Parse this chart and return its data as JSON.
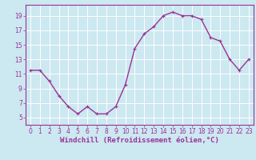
{
  "x": [
    0,
    1,
    2,
    3,
    4,
    5,
    6,
    7,
    8,
    9,
    10,
    11,
    12,
    13,
    14,
    15,
    16,
    17,
    18,
    19,
    20,
    21,
    22,
    23
  ],
  "y": [
    11.5,
    11.5,
    10.0,
    8.0,
    6.5,
    5.5,
    6.5,
    5.5,
    5.5,
    6.5,
    9.5,
    14.5,
    16.5,
    17.5,
    19.0,
    19.5,
    19.0,
    19.0,
    18.5,
    16.0,
    15.5,
    13.0,
    11.5,
    13.0
  ],
  "line_color": "#993399",
  "marker": "+",
  "marker_size": 3,
  "marker_linewidth": 0.8,
  "bg_color": "#cce8f0",
  "grid_color": "#ffffff",
  "xlabel": "Windchill (Refroidissement éolien,°C)",
  "xlim": [
    -0.5,
    23.5
  ],
  "ylim": [
    4,
    20.5
  ],
  "yticks": [
    5,
    7,
    9,
    11,
    13,
    15,
    17,
    19
  ],
  "xticks": [
    0,
    1,
    2,
    3,
    4,
    5,
    6,
    7,
    8,
    9,
    10,
    11,
    12,
    13,
    14,
    15,
    16,
    17,
    18,
    19,
    20,
    21,
    22,
    23
  ],
  "tick_fontsize": 5.5,
  "xlabel_fontsize": 6.5,
  "label_color": "#993399",
  "tick_color": "#993399",
  "spine_color": "#993399",
  "line_width": 1.0
}
